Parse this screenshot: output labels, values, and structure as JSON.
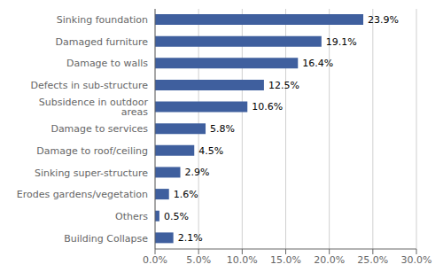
{
  "chart_data": {
    "type": "bar",
    "orientation": "horizontal",
    "categories": [
      "Building Collapse",
      "Others",
      "Erodes gardens/vegetation",
      "Sinking super-structure",
      "Damage to roof/ceiling",
      "Damage to services",
      "Subsidence in outdoor areas",
      "Defects in sub-structure",
      "Damage to walls",
      "Damaged furniture",
      "Sinking  foundation"
    ],
    "values": [
      2.1,
      0.5,
      1.6,
      2.9,
      4.5,
      5.8,
      10.6,
      12.5,
      16.4,
      19.1,
      23.9
    ],
    "value_labels": [
      "2.1%",
      "0.5%",
      "1.6%",
      "2.9%",
      "4.5%",
      "5.8%",
      "10.6%",
      "12.5%",
      "16.4%",
      "19.1%",
      "23.9%"
    ],
    "data_labels": true,
    "color": "#3F5F9E",
    "xlim": [
      0,
      30
    ],
    "xticks": [
      {
        "value": 0,
        "label": "0.0%"
      },
      {
        "value": 5,
        "label": "5.0%"
      },
      {
        "value": 10,
        "label": "10.0%"
      },
      {
        "value": 15,
        "label": "15.0%"
      },
      {
        "value": 20,
        "label": "20.0%"
      },
      {
        "value": 25,
        "label": "25.0%"
      },
      {
        "value": 30,
        "label": "30.0%"
      }
    ],
    "grid": true
  }
}
